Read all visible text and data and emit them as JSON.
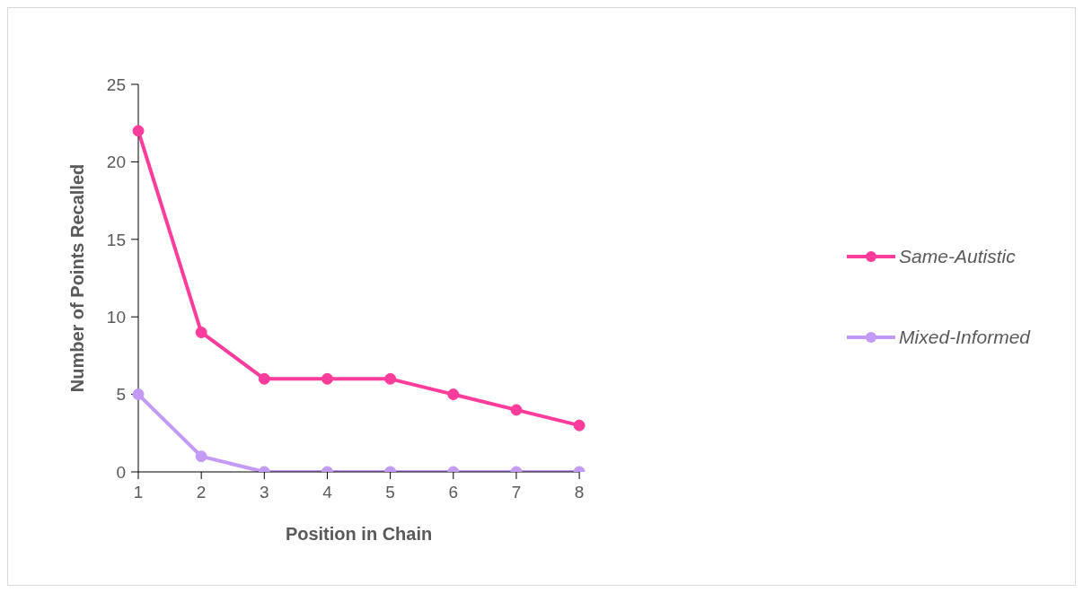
{
  "chart_data": {
    "type": "line",
    "xlabel": "Position in Chain",
    "ylabel": "Number of Points Recalled",
    "categories": [
      "1",
      "2",
      "3",
      "4",
      "5",
      "6",
      "7",
      "8"
    ],
    "series": [
      {
        "name": "Same-Autistic",
        "color": "#fe3c9b",
        "values": [
          22,
          9,
          6,
          6,
          6,
          5,
          4,
          3
        ]
      },
      {
        "name": "Mixed-Informed",
        "color": "#c39bf7",
        "values": [
          5,
          1,
          0,
          0,
          0,
          0,
          0,
          0
        ]
      }
    ],
    "ylim": [
      0,
      25
    ],
    "yticks": [
      0,
      5,
      10,
      15,
      20,
      25
    ],
    "grid": false,
    "legend": "right",
    "marker": "circle",
    "line_style": "solid"
  }
}
